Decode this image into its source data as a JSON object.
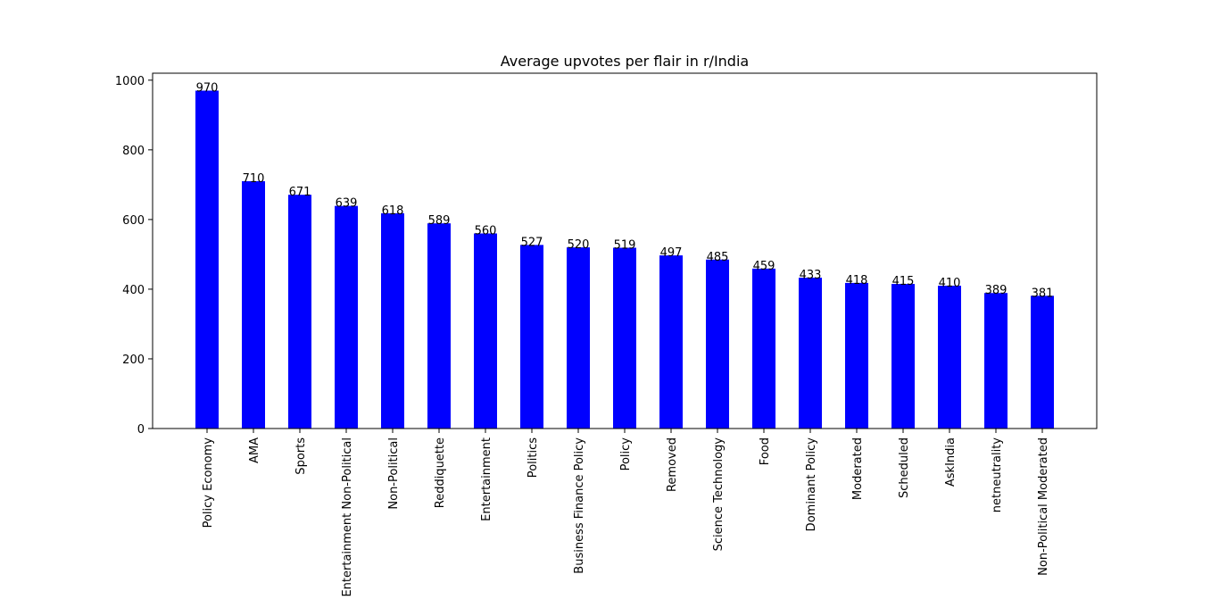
{
  "chart_data": {
    "type": "bar",
    "title": "Average upvotes per flair in r/India",
    "xlabel": "",
    "ylabel": "",
    "ylim": [
      0,
      1020
    ],
    "yticks": [
      0,
      200,
      400,
      600,
      800,
      1000
    ],
    "bar_color": "#0000ff",
    "grid": false,
    "legend": "none",
    "categories": [
      "Policy Economy",
      "AMA",
      "Sports",
      "Entertainment Non-Political",
      "Non-Political",
      "Reddiquette",
      "Entertainment",
      "Politics",
      "Business Finance Policy",
      "Policy",
      "Removed",
      "Science Technology",
      "Food",
      "Dominant Policy",
      "Moderated",
      "Scheduled",
      "AskIndia",
      "netneutrality",
      "Non-Political Moderated"
    ],
    "values": [
      970,
      710,
      671,
      639,
      618,
      589,
      560,
      527,
      520,
      519,
      497,
      485,
      459,
      433,
      418,
      415,
      410,
      389,
      381
    ],
    "value_labels": [
      "970",
      "710",
      "671",
      "639",
      "618",
      "589",
      "560",
      "527",
      "520",
      "519",
      "497",
      "485",
      "459",
      "433",
      "418",
      "415",
      "410",
      "389",
      "381"
    ]
  }
}
